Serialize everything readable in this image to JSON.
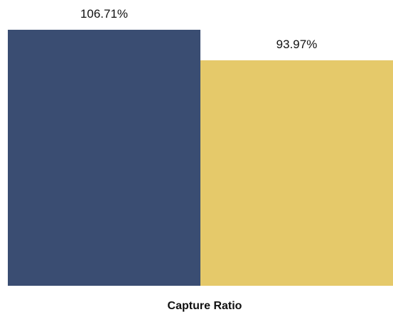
{
  "chart_data": {
    "type": "bar",
    "categories": [
      "",
      ""
    ],
    "values": [
      106.71,
      93.97
    ],
    "value_labels": [
      "106.71%",
      "93.97%"
    ],
    "colors": [
      "#3a4d72",
      "#e5c96a"
    ],
    "xlabel": "Capture Ratio",
    "ylabel": "",
    "title": "",
    "ylim": [
      0,
      113.5
    ],
    "grid": false,
    "legend": "none"
  }
}
